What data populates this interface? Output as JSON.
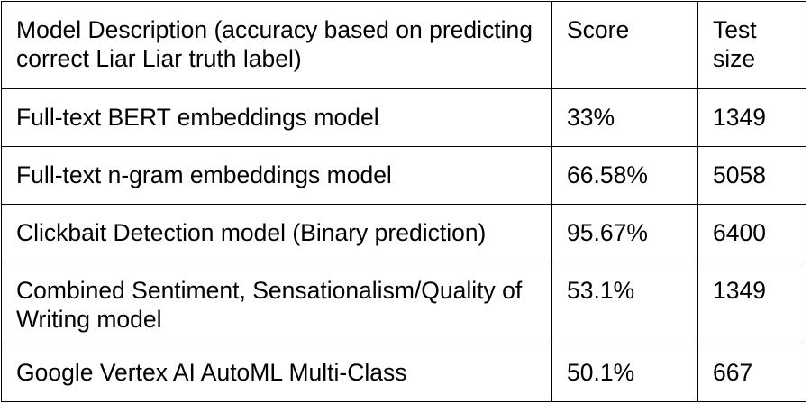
{
  "table": {
    "headers": [
      "Model Description (accuracy based on predicting correct Liar Liar truth label)",
      "Score",
      "Test size"
    ],
    "rows": [
      [
        "Full-text BERT embeddings model",
        "33%",
        "1349"
      ],
      [
        "Full-text n-gram embeddings model",
        "66.58%",
        "5058"
      ],
      [
        "Clickbait Detection model (Binary prediction)",
        "95.67%",
        "6400"
      ],
      [
        "Combined Sentiment, Sensationalism/Quality of Writing model",
        "53.1%",
        "1349"
      ],
      [
        "Google Vertex AI AutoML Multi-Class",
        "50.1%",
        "667"
      ]
    ]
  }
}
